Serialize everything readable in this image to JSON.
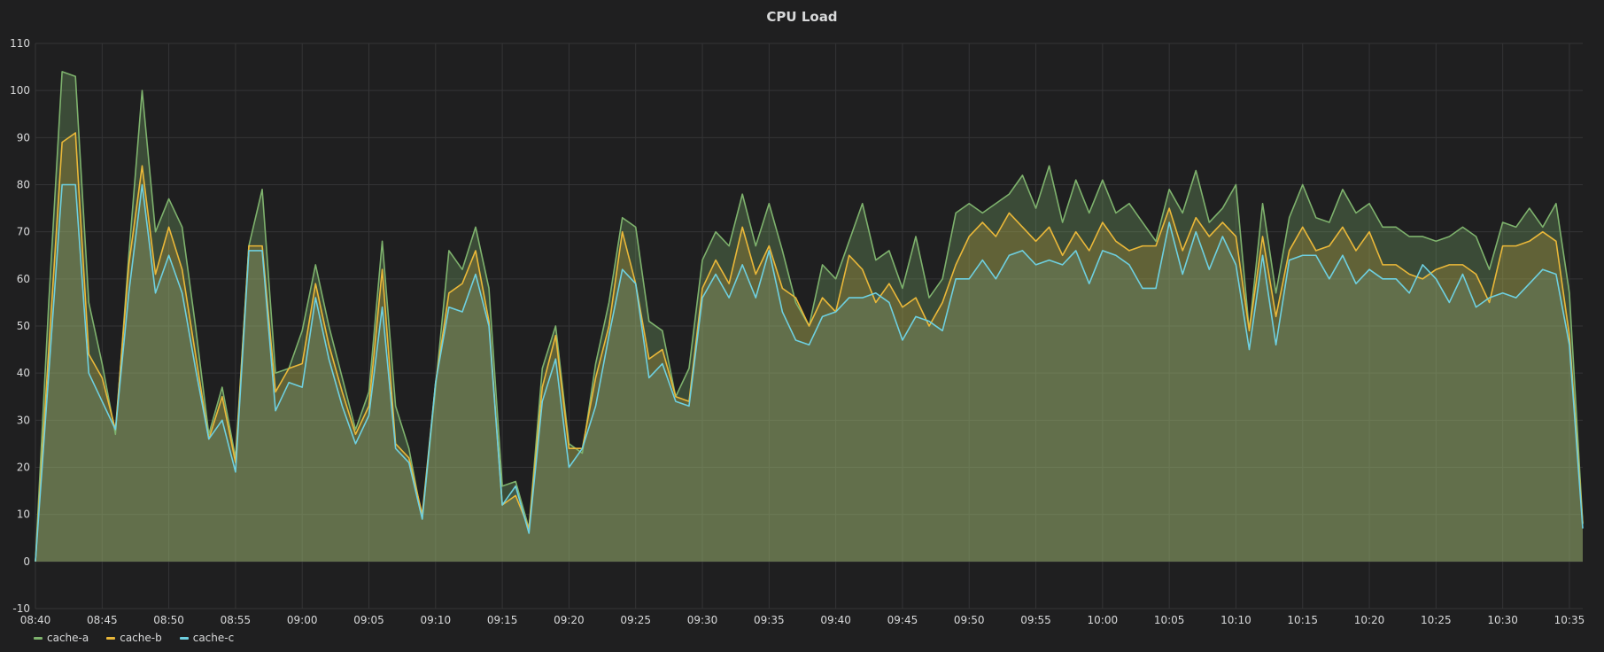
{
  "panel": {
    "title": "CPU Load"
  },
  "chart_data": {
    "type": "area",
    "title": "CPU Load",
    "xlabel": "",
    "ylabel": "",
    "ylim": [
      -10,
      110
    ],
    "yticks": [
      -10,
      0,
      10,
      20,
      30,
      40,
      50,
      60,
      70,
      80,
      90,
      100,
      110
    ],
    "xticks": [
      "08:40",
      "08:45",
      "08:50",
      "08:55",
      "09:00",
      "09:05",
      "09:10",
      "09:15",
      "09:20",
      "09:25",
      "09:30",
      "09:35",
      "09:40",
      "09:45",
      "09:50",
      "09:55",
      "10:00",
      "10:05",
      "10:10",
      "10:15",
      "10:20",
      "10:25",
      "10:30",
      "10:35"
    ],
    "x_start": "08:40",
    "x_end": "10:36",
    "x_interval_minutes": 1,
    "grid": true,
    "legend_position": "bottom-left",
    "series": [
      {
        "name": "cache-a",
        "color": "#7eb26d",
        "values": [
          0,
          55,
          104,
          103,
          55,
          42,
          27,
          65,
          100,
          70,
          77,
          71,
          50,
          27,
          37,
          22,
          67,
          79,
          40,
          41,
          49,
          63,
          50,
          39,
          28,
          36,
          68,
          33,
          24,
          9,
          37,
          66,
          62,
          71,
          58,
          16,
          17,
          7,
          41,
          50,
          25,
          23,
          42,
          55,
          73,
          71,
          51,
          49,
          35,
          41,
          64,
          70,
          67,
          78,
          67,
          76,
          66,
          55,
          50,
          63,
          60,
          68,
          76,
          64,
          66,
          58,
          69,
          56,
          60,
          74,
          76,
          74,
          76,
          78,
          82,
          75,
          84,
          72,
          81,
          74,
          81,
          74,
          76,
          72,
          68,
          79,
          74,
          83,
          72,
          75,
          80,
          49,
          76,
          57,
          73,
          80,
          73,
          72,
          79,
          74,
          76,
          71,
          71,
          69,
          69,
          68,
          69,
          71,
          69,
          62,
          72,
          71,
          75,
          71,
          76,
          57,
          8
        ],
        "area_opacity": 0.3
      },
      {
        "name": "cache-b",
        "color": "#eab839",
        "values": [
          0,
          45,
          89,
          91,
          44,
          39,
          28,
          63,
          84,
          61,
          71,
          62,
          44,
          26,
          35,
          21,
          67,
          67,
          36,
          41,
          42,
          59,
          46,
          36,
          27,
          33,
          62,
          25,
          22,
          10,
          38,
          57,
          59,
          66,
          51,
          12,
          14,
          7,
          37,
          48,
          24,
          24,
          39,
          50,
          70,
          59,
          43,
          45,
          35,
          34,
          58,
          64,
          59,
          71,
          61,
          67,
          58,
          56,
          50,
          56,
          53,
          65,
          62,
          55,
          59,
          54,
          56,
          50,
          55,
          63,
          69,
          72,
          69,
          74,
          71,
          68,
          71,
          65,
          70,
          66,
          72,
          68,
          66,
          67,
          67,
          75,
          66,
          73,
          69,
          72,
          69,
          49,
          69,
          52,
          66,
          71,
          66,
          67,
          71,
          66,
          70,
          63,
          63,
          61,
          60,
          62,
          63,
          63,
          61,
          55,
          67,
          67,
          68,
          70,
          68,
          48,
          8
        ],
        "area_opacity": 0.22
      },
      {
        "name": "cache-c",
        "color": "#6ed0e0",
        "values": [
          0,
          40,
          80,
          80,
          40,
          34,
          28,
          57,
          80,
          57,
          65,
          57,
          41,
          26,
          30,
          19,
          66,
          66,
          32,
          38,
          37,
          56,
          43,
          33,
          25,
          31,
          54,
          24,
          21,
          9,
          38,
          54,
          53,
          61,
          50,
          12,
          16,
          6,
          34,
          43,
          20,
          24,
          33,
          48,
          62,
          59,
          39,
          42,
          34,
          33,
          56,
          61,
          56,
          63,
          56,
          66,
          53,
          47,
          46,
          52,
          53,
          56,
          56,
          57,
          55,
          47,
          52,
          51,
          49,
          60,
          60,
          64,
          60,
          65,
          66,
          63,
          64,
          63,
          66,
          59,
          66,
          65,
          63,
          58,
          58,
          72,
          61,
          70,
          62,
          69,
          63,
          45,
          65,
          46,
          64,
          65,
          65,
          60,
          65,
          59,
          62,
          60,
          60,
          57,
          63,
          60,
          55,
          61,
          54,
          56,
          57,
          56,
          59,
          62,
          61,
          46,
          7
        ],
        "area_opacity": 0.12
      }
    ]
  }
}
